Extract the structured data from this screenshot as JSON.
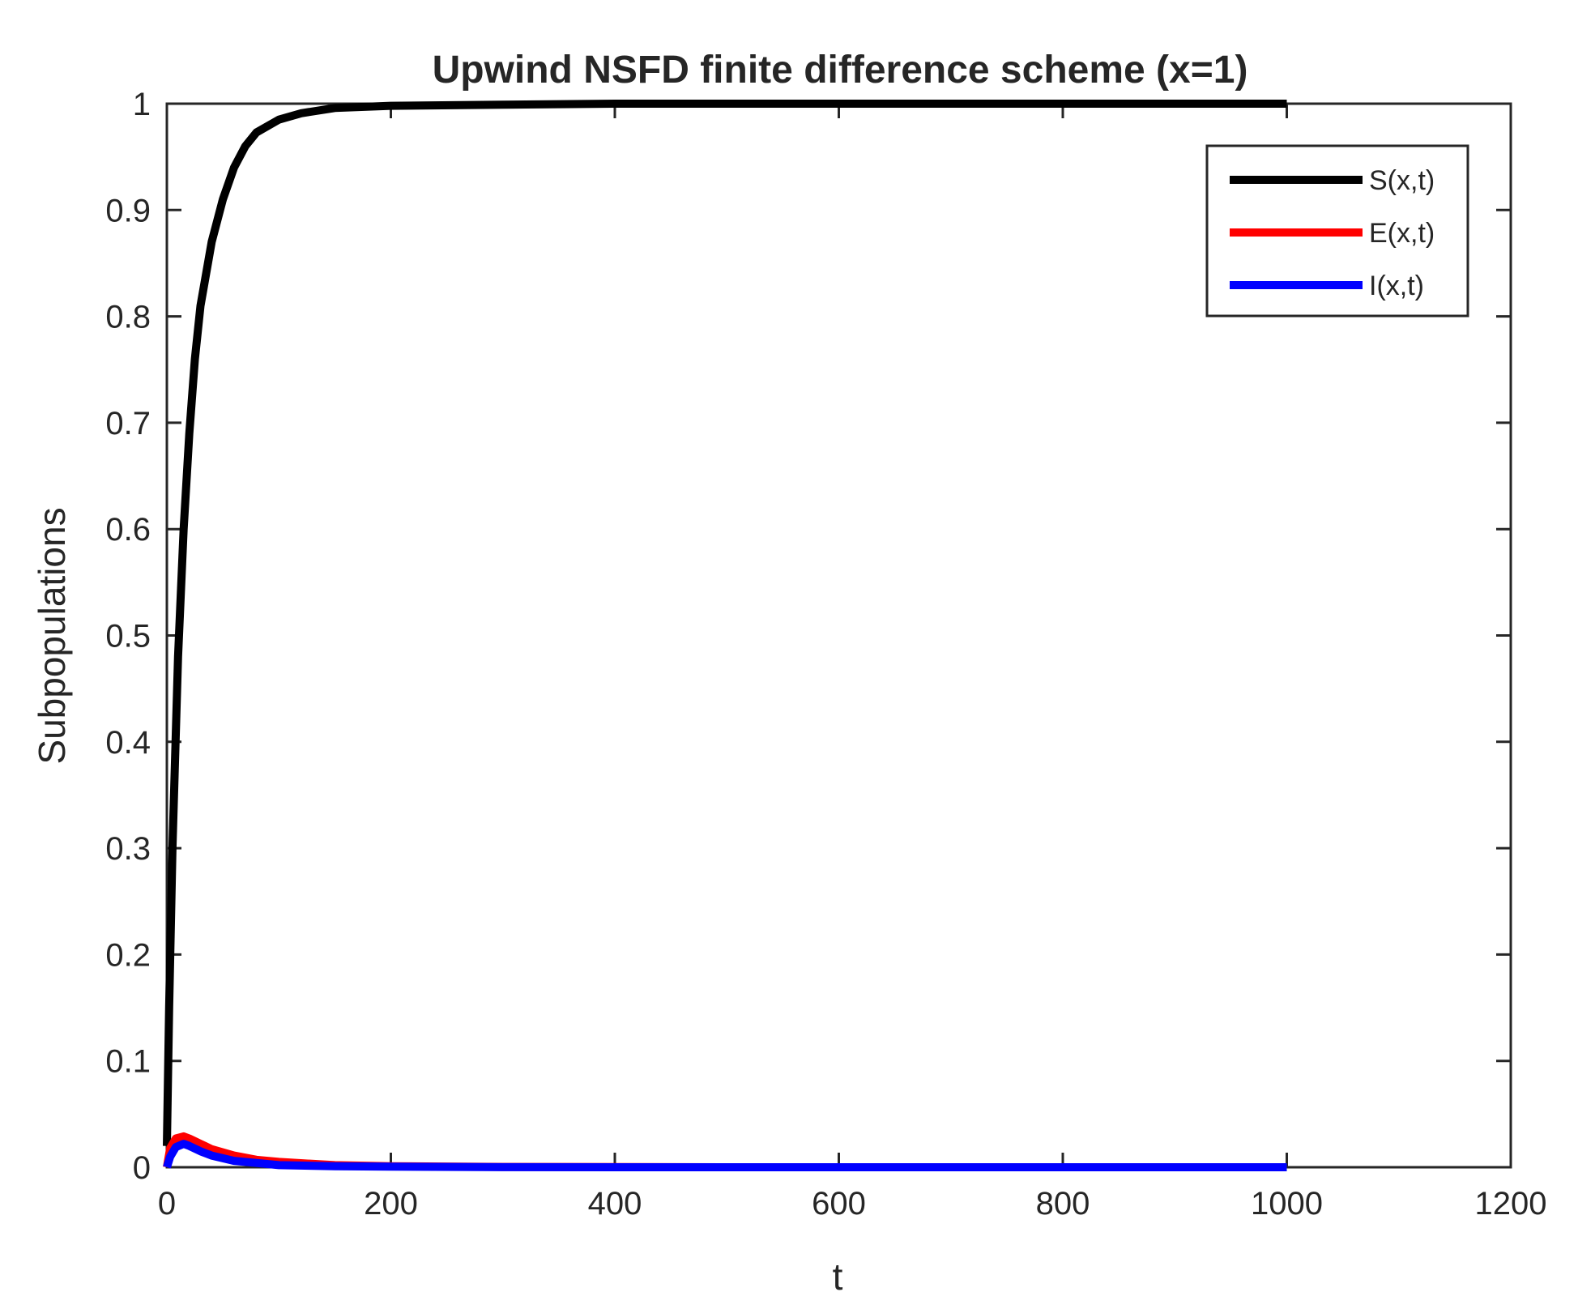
{
  "chart_data": {
    "type": "line",
    "title": "Upwind NSFD finite difference scheme (x=1)",
    "xlabel": "t",
    "ylabel": "Subpopulations",
    "xlim": [
      0,
      1200
    ],
    "ylim": [
      0,
      1
    ],
    "xticks": [
      "0",
      "200",
      "400",
      "600",
      "800",
      "1000",
      "1200"
    ],
    "yticks": [
      "0",
      "0.1",
      "0.2",
      "0.3",
      "0.4",
      "0.5",
      "0.6",
      "0.7",
      "0.8",
      "0.9",
      "1"
    ],
    "grid": false,
    "legend": "top-right",
    "series": [
      {
        "name": "S(x,t)",
        "color": "#000000",
        "x": [
          0,
          2,
          5,
          10,
          15,
          20,
          25,
          30,
          40,
          50,
          60,
          70,
          80,
          100,
          120,
          150,
          200,
          300,
          400,
          600,
          800,
          1000
        ],
        "y": [
          0.02,
          0.15,
          0.3,
          0.48,
          0.6,
          0.69,
          0.76,
          0.81,
          0.87,
          0.91,
          0.94,
          0.96,
          0.973,
          0.985,
          0.991,
          0.996,
          0.998,
          0.999,
          1.0,
          1.0,
          1.0,
          1.0
        ]
      },
      {
        "name": "E(x,t)",
        "color": "#ff0000",
        "x": [
          0,
          3,
          8,
          15,
          20,
          30,
          40,
          60,
          80,
          100,
          150,
          200,
          300,
          500,
          1000
        ],
        "y": [
          0.0,
          0.018,
          0.027,
          0.029,
          0.027,
          0.022,
          0.017,
          0.011,
          0.007,
          0.005,
          0.002,
          0.001,
          0.0003,
          0.0,
          0.0
        ]
      },
      {
        "name": "I(x,t)",
        "color": "#0000ff",
        "x": [
          0,
          3,
          8,
          15,
          20,
          30,
          40,
          60,
          80,
          100,
          150,
          200,
          300,
          500,
          1000
        ],
        "y": [
          0.0,
          0.01,
          0.019,
          0.022,
          0.02,
          0.015,
          0.011,
          0.006,
          0.004,
          0.002,
          0.001,
          0.0005,
          0.0001,
          0.0,
          0.0
        ]
      }
    ]
  }
}
